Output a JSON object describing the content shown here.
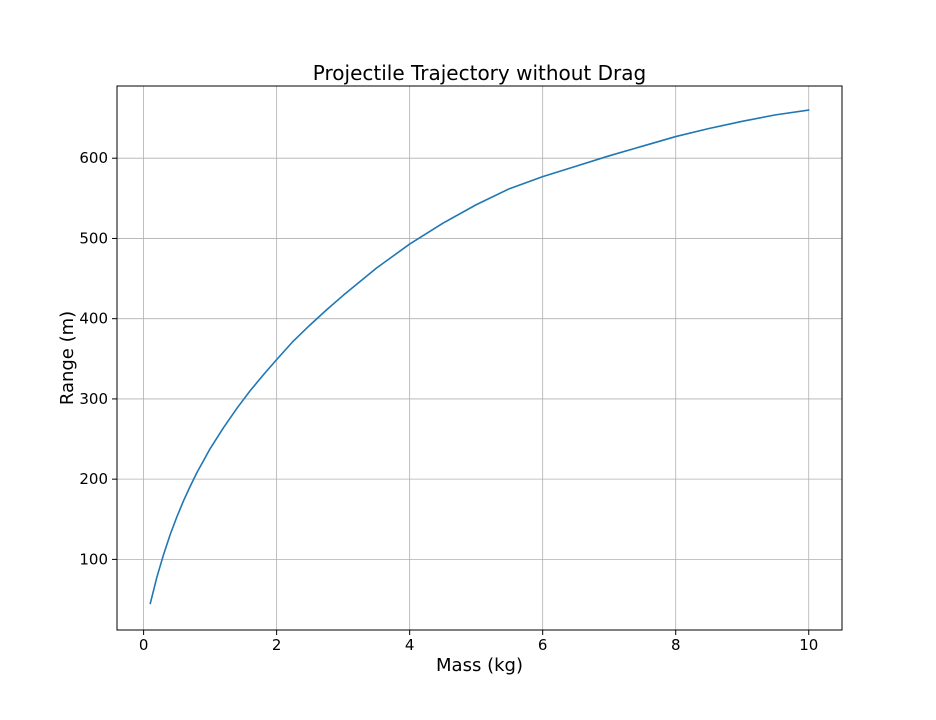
{
  "chart_data": {
    "type": "line",
    "title": "Projectile Trajectory without Drag",
    "xlabel": "Mass (kg)",
    "ylabel": "Range (m)",
    "xlim": [
      -0.4,
      10.5
    ],
    "ylim": [
      12,
      690
    ],
    "xticks": [
      0,
      2,
      4,
      6,
      8,
      10
    ],
    "yticks": [
      100,
      200,
      300,
      400,
      500,
      600
    ],
    "grid": true,
    "series": [
      {
        "color": "#1f77b4",
        "x": [
          0.1,
          0.2,
          0.3,
          0.4,
          0.5,
          0.6,
          0.7,
          0.8,
          0.9,
          1.0,
          1.2,
          1.4,
          1.6,
          1.8,
          2.0,
          2.25,
          2.5,
          2.75,
          3.0,
          3.5,
          4.0,
          4.5,
          5.0,
          5.5,
          6.0,
          6.5,
          7.0,
          7.5,
          8.0,
          8.5,
          9.0,
          9.5,
          10.0
        ],
        "y": [
          45,
          78,
          106,
          131,
          153,
          173,
          191,
          208,
          223,
          238,
          264,
          288,
          310,
          330,
          349,
          372,
          392,
          411,
          429,
          463,
          493,
          519,
          542,
          562,
          577,
          590,
          603,
          615,
          627,
          637,
          646,
          654,
          660
        ]
      }
    ]
  }
}
